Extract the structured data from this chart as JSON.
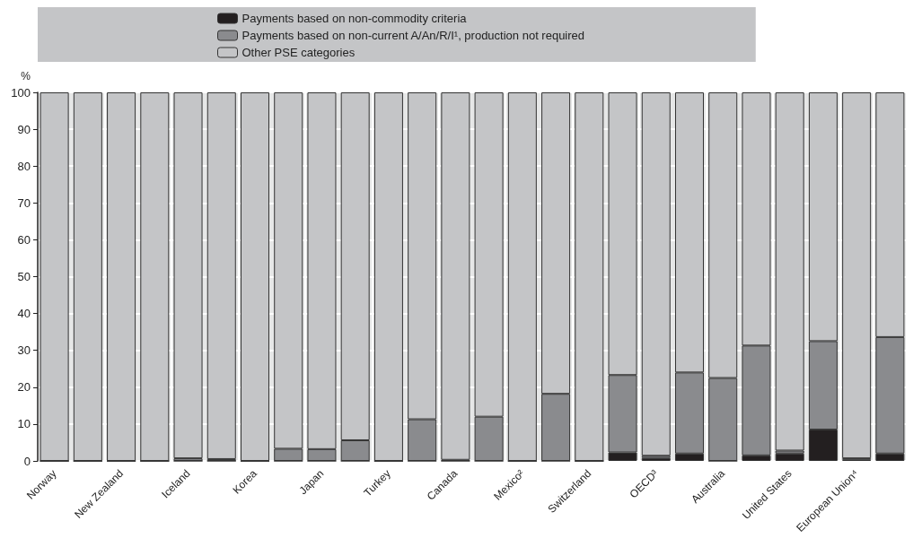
{
  "chart_data": {
    "type": "bar",
    "stacked": true,
    "ylabel": "%",
    "categories": [
      "Norway",
      null,
      "New Zealand",
      null,
      "Iceland",
      null,
      "Korea",
      null,
      "Japan",
      null,
      "Turkey",
      null,
      "Canada",
      null,
      "Mexico²",
      null,
      "Switzerland",
      null,
      "OECD³",
      null,
      "Australia",
      null,
      "United States",
      null,
      "European Union⁴",
      null
    ],
    "series": [
      {
        "name": "Payments based on non-commodity criteria",
        "color": "#231f20",
        "values": [
          0,
          0,
          0,
          0,
          0,
          0,
          0,
          0,
          0,
          0,
          0,
          0,
          0,
          0,
          0,
          0,
          0,
          2.3,
          0.8,
          2,
          0,
          1.5,
          2,
          8.5,
          0.3,
          2
        ]
      },
      {
        "name": "Payments based on non-current A/An/R/I¹, production not required",
        "color": "#8a8b8e",
        "values": [
          0,
          0,
          0,
          0,
          0.7,
          0.5,
          0,
          3.3,
          3.2,
          5.6,
          0,
          11.3,
          0.3,
          12,
          0,
          18.2,
          0,
          21,
          0.6,
          22,
          22.5,
          29.8,
          0.8,
          24,
          0.4,
          31.6
        ]
      },
      {
        "name": "Other PSE categories",
        "color": "#c4c5c7",
        "values": [
          100,
          100,
          100,
          100,
          99.3,
          99.5,
          100,
          96.7,
          96.8,
          94.4,
          100,
          88.7,
          99.7,
          88,
          100,
          81.8,
          100,
          76.7,
          98.6,
          76,
          77.5,
          68.7,
          97.2,
          67.5,
          99.3,
          66.4
        ]
      }
    ],
    "ylim": [
      0,
      100
    ],
    "yticks": [
      0,
      10,
      20,
      30,
      40,
      50,
      60,
      70,
      80,
      90,
      100
    ],
    "grid": true,
    "legend": "top"
  }
}
